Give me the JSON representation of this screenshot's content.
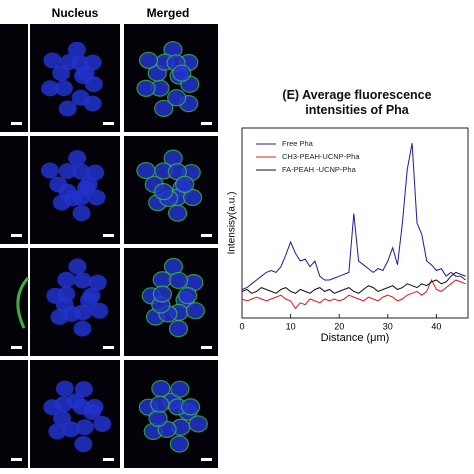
{
  "panels": {
    "headers": [
      "Nucleus",
      "Merged"
    ]
  },
  "chart_data": {
    "type": "line",
    "title": "(E) Average fluorescence intensities of Pha",
    "x_label": "Distance (μm)",
    "y_label": "Intensisy(a.u.)",
    "x": [
      0,
      1,
      2,
      3,
      4,
      5,
      6,
      7,
      8,
      9,
      10,
      11,
      12,
      13,
      14,
      15,
      16,
      17,
      18,
      19,
      20,
      21,
      22,
      23,
      24,
      25,
      26,
      27,
      28,
      29,
      30,
      31,
      32,
      33,
      34,
      35,
      36,
      37,
      38,
      39,
      40,
      41,
      42,
      43,
      44,
      45,
      46
    ],
    "series": [
      {
        "name": "Free Pha",
        "color": "#1c1c9c",
        "values": [
          15,
          16,
          18,
          20,
          22,
          24,
          25,
          24,
          27,
          33,
          40,
          34,
          30,
          31,
          27,
          30,
          22,
          20,
          20,
          21,
          22,
          23,
          24,
          55,
          30,
          28,
          26,
          24,
          26,
          25,
          30,
          37,
          28,
          50,
          78,
          92,
          50,
          44,
          30,
          28,
          25,
          26,
          22,
          24,
          22,
          22,
          20
        ]
      },
      {
        "name": "CH3-PEAH-UCNP-Pha",
        "color": "#d42020",
        "values": [
          10,
          9,
          10,
          11,
          10,
          9,
          10,
          11,
          12,
          10,
          9,
          5,
          8,
          7,
          10,
          9,
          8,
          10,
          9,
          10,
          9,
          10,
          12,
          11,
          10,
          9,
          11,
          10,
          9,
          11,
          12,
          11,
          9,
          10,
          12,
          13,
          14,
          12,
          14,
          20,
          15,
          14,
          16,
          18,
          20,
          19,
          18
        ]
      },
      {
        "name": "FA-PEAH -UCNP-Pha",
        "color": "#111111",
        "values": [
          14,
          15,
          13,
          14,
          16,
          15,
          14,
          13,
          15,
          16,
          14,
          13,
          15,
          14,
          13,
          15,
          16,
          14,
          15,
          13,
          14,
          15,
          16,
          14,
          13,
          15,
          17,
          16,
          14,
          15,
          16,
          17,
          15,
          16,
          18,
          17,
          16,
          18,
          17,
          19,
          20,
          18,
          19,
          22,
          24,
          23,
          22
        ]
      }
    ],
    "xlim": [
      0,
      46.5
    ],
    "ylim": [
      0,
      100
    ],
    "xticks": [
      0,
      10,
      20,
      30,
      40
    ],
    "legend": "upper left"
  }
}
